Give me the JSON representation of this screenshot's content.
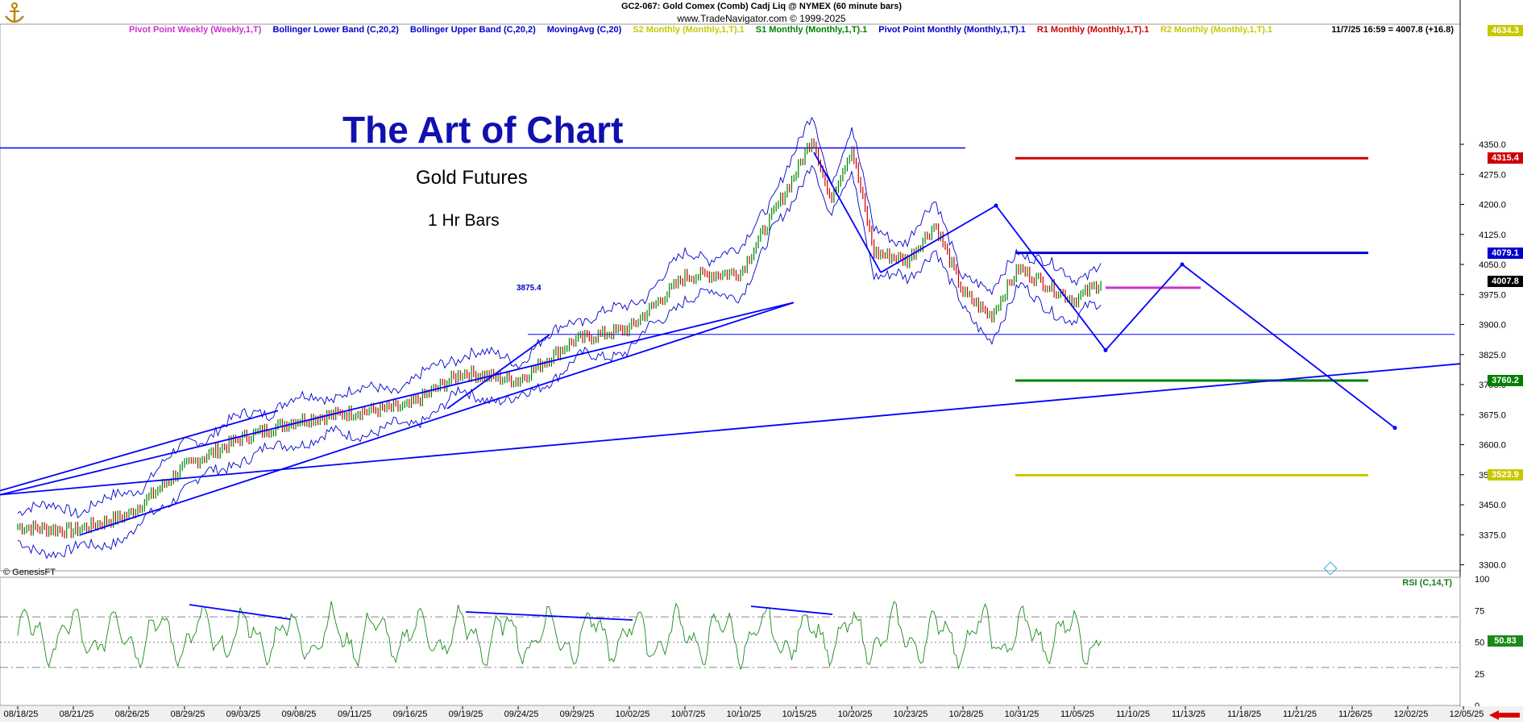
{
  "header": {
    "line1": "GC2-067:  Gold Comex (Comb) Cadj Liq @ NYMEX  (60 minute bars)",
    "line2": "www.TradeNavigator.com © 1999-2025"
  },
  "legend": [
    {
      "label": "Pivot Point Weekly (Weekly,1,T)",
      "color": "#cc33cc"
    },
    {
      "label": "Bollinger Lower Band (C,20,2)",
      "color": "#0000cc"
    },
    {
      "label": "Bollinger Upper Band (C,20,2)",
      "color": "#0000cc"
    },
    {
      "label": "MovingAvg (C,20)",
      "color": "#0000cc"
    },
    {
      "label": "S2 Monthly (Monthly,1,T).1",
      "color": "#c8c800"
    },
    {
      "label": "S1 Monthly (Monthly,1,T).1",
      "color": "#008000"
    },
    {
      "label": "Pivot Point Monthly (Monthly,1,T).1",
      "color": "#0000cc"
    },
    {
      "label": "R1 Monthly (Monthly,1,T).1",
      "color": "#cc0000"
    },
    {
      "label": "R2 Monthly (Monthly,1,T).1",
      "color": "#c8c800"
    }
  ],
  "quote": "11/7/25 16:59 = 4007.8 (+16.8)",
  "overlay": {
    "title": "The Art of Chart",
    "subtitle": "Gold Futures",
    "bars": "1 Hr Bars",
    "annotation": "3875.4"
  },
  "copyright": "© GenesisFT",
  "rsi_label": "RSI (C,14,T)",
  "colors": {
    "price_up": "#008000",
    "price_down": "#cc0000",
    "band": "#0000cc",
    "rsi": "#1a8a1a",
    "drawing": "#0000ff"
  },
  "price_badges": [
    {
      "value": "4634.3",
      "bg": "#c8c800"
    },
    {
      "value": "4315.4",
      "bg": "#cc0000"
    },
    {
      "value": "4079.1",
      "bg": "#0000cc"
    },
    {
      "value": "4007.8",
      "bg": "#000000"
    },
    {
      "value": "3760.2",
      "bg": "#008000"
    },
    {
      "value": "3523.9",
      "bg": "#c8c800"
    },
    {
      "value": "50.83",
      "bg": "#1a8a1a"
    }
  ],
  "chart_data": [
    {
      "type": "line",
      "title": "GC2-067:  Gold Comex (Comb) Cadj Liq @ NYMEX  (60 minute bars)",
      "x_tick_labels": [
        "08/18/25",
        "08/21/25",
        "08/26/25",
        "08/29/25",
        "09/03/25",
        "09/08/25",
        "09/11/25",
        "09/16/25",
        "09/19/25",
        "09/24/25",
        "09/29/25",
        "10/02/25",
        "10/07/25",
        "10/10/25",
        "10/15/25",
        "10/20/25",
        "10/23/25",
        "10/28/25",
        "10/31/25",
        "11/05/25",
        "11/10/25",
        "11/13/25",
        "11/18/25",
        "11/21/25",
        "11/26/25",
        "12/02/25",
        "12/05/25"
      ],
      "y_ticks": [
        3300.0,
        3375.0,
        3450.0,
        3525.0,
        3600.0,
        3675.0,
        3750.0,
        3825.0,
        3900.0,
        3975.0,
        4050.0,
        4125.0,
        4200.0,
        4275.0,
        4350.0
      ],
      "ylim": [
        3285,
        4650
      ],
      "price_path": {
        "x_date_index": [
          0,
          1,
          2,
          3,
          4,
          5,
          6,
          7,
          8,
          9,
          10,
          11,
          12,
          13,
          14,
          14.3,
          14.6,
          15,
          15.4,
          16,
          16.5,
          17,
          17.5,
          18,
          18.5,
          19,
          19.5
        ],
        "close": [
          3395,
          3385,
          3425,
          3545,
          3615,
          3660,
          3680,
          3695,
          3780,
          3760,
          3860,
          3890,
          4020,
          4030,
          4280,
          4370,
          4210,
          4340,
          4080,
          4060,
          4150,
          3980,
          3920,
          4040,
          4000,
          3960,
          4008
        ]
      },
      "levels": [
        {
          "name": "R2 Monthly",
          "value": 4634.3
        },
        {
          "name": "R1 Monthly",
          "value": 4315.4
        },
        {
          "name": "Pivot Point Monthly",
          "value": 4079.1
        },
        {
          "name": "Last",
          "value": 4007.8
        },
        {
          "name": "S1 Monthly",
          "value": 3760.2
        },
        {
          "name": "S2 Monthly",
          "value": 3523.9
        },
        {
          "name": "Horizontal line",
          "value": 3875.4
        }
      ]
    },
    {
      "type": "line",
      "title": "RSI (C,14,T)",
      "y_ticks": [
        0,
        25,
        50,
        75,
        100
      ],
      "ylim": [
        0,
        100
      ],
      "reference_lines": [
        30,
        50,
        70
      ],
      "last": 50.83
    }
  ]
}
